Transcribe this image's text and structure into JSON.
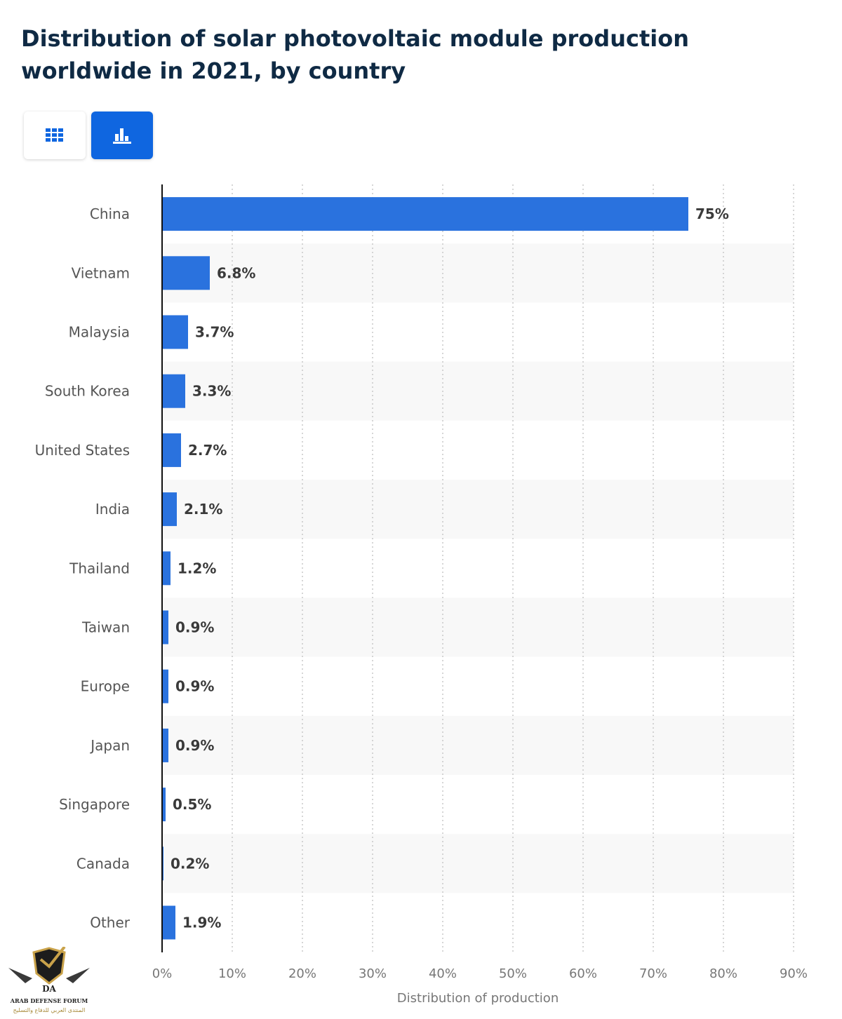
{
  "header": {
    "title": "Distribution of solar photovoltaic module production worldwide in 2021, by country"
  },
  "view_toggle": {
    "table_icon": "table-grid-icon",
    "chart_icon": "bar-chart-icon",
    "active": "chart",
    "active_color": "#0f66e0",
    "icon_color_inactive": "#0f66e0"
  },
  "chart_data": {
    "type": "bar",
    "orientation": "horizontal",
    "categories": [
      "China",
      "Vietnam",
      "Malaysia",
      "South Korea",
      "United States",
      "India",
      "Thailand",
      "Taiwan",
      "Europe",
      "Japan",
      "Singapore",
      "Canada",
      "Other"
    ],
    "values": [
      75,
      6.8,
      3.7,
      3.3,
      2.7,
      2.1,
      1.2,
      0.9,
      0.9,
      0.9,
      0.5,
      0.2,
      1.9
    ],
    "value_labels": [
      "75%",
      "6.8%",
      "3.7%",
      "3.3%",
      "2.7%",
      "2.1%",
      "1.2%",
      "0.9%",
      "0.9%",
      "0.9%",
      "0.5%",
      "0.2%",
      "1.9%"
    ],
    "xlabel": "Distribution of production",
    "ylabel": "",
    "xlim": [
      0,
      90
    ],
    "x_ticks": [
      0,
      10,
      20,
      30,
      40,
      50,
      60,
      70,
      80,
      90
    ],
    "x_tick_labels": [
      "0%",
      "10%",
      "20%",
      "30%",
      "40%",
      "50%",
      "60%",
      "70%",
      "80%",
      "90%"
    ],
    "grid": true,
    "bar_color": "#2a72de",
    "stripe_color": "#f8f8f8"
  },
  "watermark": {
    "logo_text": "ARAB DEFENSE FORUM",
    "logo_text_ar": "المنتدى العربي للدفاع والتسليح"
  }
}
